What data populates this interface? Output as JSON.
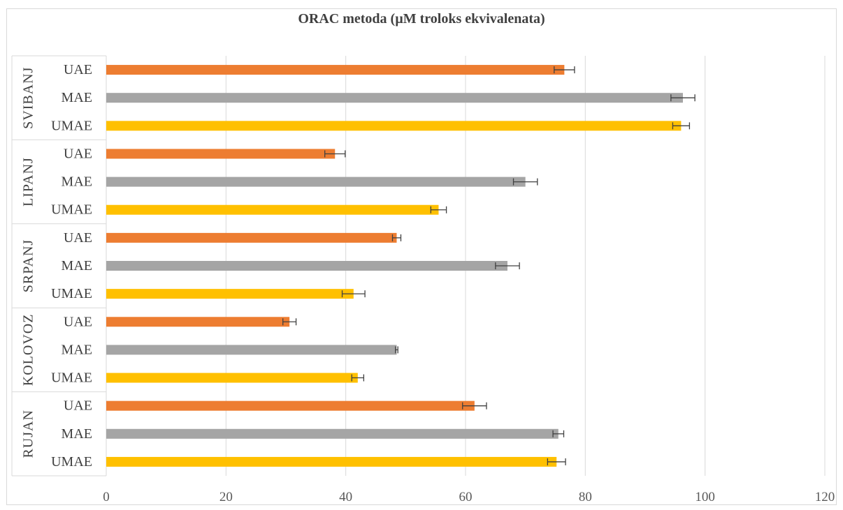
{
  "chart_data": {
    "type": "bar",
    "orientation": "horizontal",
    "title": "ORAC metoda (µM troloks ekvivalenata)",
    "xlim": [
      0,
      120
    ],
    "x_ticks": [
      0,
      20,
      40,
      60,
      80,
      100,
      120
    ],
    "grid": true,
    "legend": "none",
    "colors": {
      "UAE": "#ed7d31",
      "MAE": "#a5a5a5",
      "UMAE": "#ffc000"
    },
    "groups": [
      {
        "name": "SVIBANJ",
        "bars": [
          {
            "label": "UAE",
            "value": 76.5,
            "error": 1.7
          },
          {
            "label": "MAE",
            "value": 96.3,
            "error": 2.0
          },
          {
            "label": "UMAE",
            "value": 96.0,
            "error": 1.4
          }
        ]
      },
      {
        "name": "LIPANJ",
        "bars": [
          {
            "label": "UAE",
            "value": 38.2,
            "error": 1.7
          },
          {
            "label": "MAE",
            "value": 70.0,
            "error": 2.0
          },
          {
            "label": "UMAE",
            "value": 55.5,
            "error": 1.3
          }
        ]
      },
      {
        "name": "SRPANJ",
        "bars": [
          {
            "label": "UAE",
            "value": 48.5,
            "error": 0.7
          },
          {
            "label": "MAE",
            "value": 67.0,
            "error": 2.0
          },
          {
            "label": "UMAE",
            "value": 41.3,
            "error": 1.9
          }
        ]
      },
      {
        "name": "KOLOVOZ",
        "bars": [
          {
            "label": "UAE",
            "value": 30.6,
            "error": 1.1
          },
          {
            "label": "MAE",
            "value": 48.5,
            "error": 0.2
          },
          {
            "label": "UMAE",
            "value": 42.0,
            "error": 1.0
          }
        ]
      },
      {
        "name": "RUJAN",
        "bars": [
          {
            "label": "UAE",
            "value": 61.5,
            "error": 2.0
          },
          {
            "label": "MAE",
            "value": 75.5,
            "error": 0.9
          },
          {
            "label": "UMAE",
            "value": 75.2,
            "error": 1.5
          }
        ]
      }
    ]
  }
}
